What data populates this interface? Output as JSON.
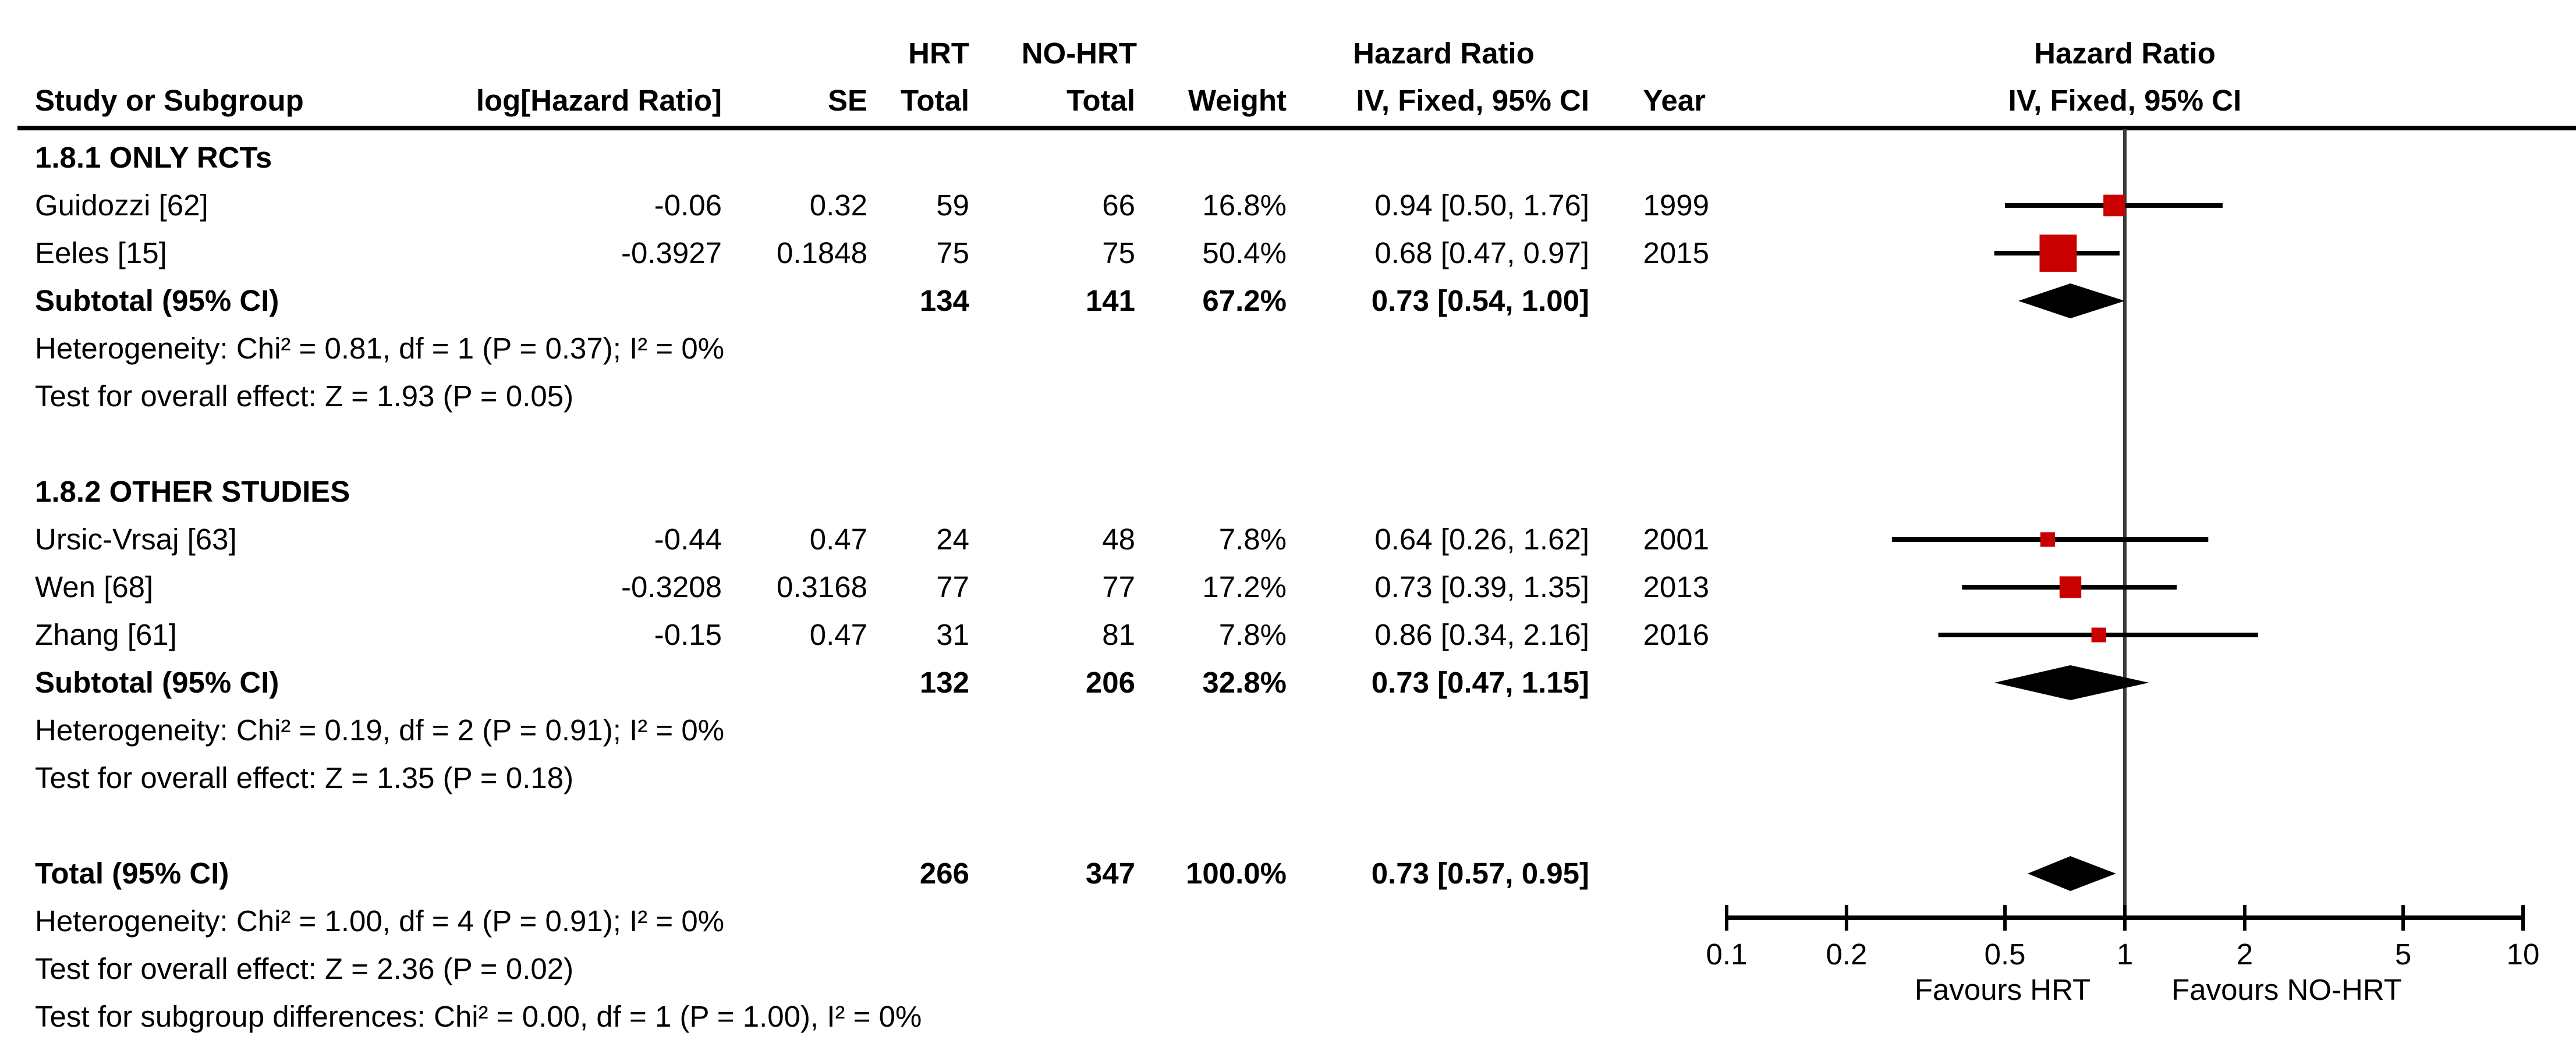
{
  "figure": {
    "col_headers": {
      "group_hrt": "HRT",
      "group_nohrt": "NO-HRT",
      "hazard_ratio": "Hazard Ratio",
      "study": "Study or Subgroup",
      "loghr": "log[Hazard Ratio]",
      "se": "SE",
      "total_hrt": "Total",
      "total_nohrt": "Total",
      "weight": "Weight",
      "iv_fixed": "IV, Fixed, 95% CI",
      "year": "Year",
      "plot_hazard_ratio": "Hazard Ratio",
      "plot_iv_fixed": "IV, Fixed, 95% CI"
    },
    "s1": {
      "title": "1.8.1 ONLY RCTs",
      "rows": [
        {
          "study": "Guidozzi [62]",
          "loghr": "-0.06",
          "se": "0.32",
          "t1": "59",
          "t2": "66",
          "weight": "16.8%",
          "ci": "0.94 [0.50, 1.76]",
          "year": "1999"
        },
        {
          "study": "Eeles [15]",
          "loghr": "-0.3927",
          "se": "0.1848",
          "t1": "75",
          "t2": "75",
          "weight": "50.4%",
          "ci": "0.68 [0.47, 0.97]",
          "year": "2015"
        }
      ],
      "subtotal": {
        "label": "Subtotal (95% CI)",
        "t1": "134",
        "t2": "141",
        "weight": "67.2%",
        "ci": "0.73 [0.54, 1.00]"
      },
      "heterogeneity": "Heterogeneity: Chi² = 0.81, df = 1 (P = 0.37); I² = 0%",
      "overall": "Test for overall effect: Z = 1.93 (P = 0.05)"
    },
    "s2": {
      "title": "1.8.2 OTHER STUDIES",
      "rows": [
        {
          "study": "Ursic-Vrsaj [63]",
          "loghr": "-0.44",
          "se": "0.47",
          "t1": "24",
          "t2": "48",
          "weight": "7.8%",
          "ci": "0.64 [0.26, 1.62]",
          "year": "2001"
        },
        {
          "study": "Wen [68]",
          "loghr": "-0.3208",
          "se": "0.3168",
          "t1": "77",
          "t2": "77",
          "weight": "17.2%",
          "ci": "0.73 [0.39, 1.35]",
          "year": "2013"
        },
        {
          "study": "Zhang [61]",
          "loghr": "-0.15",
          "se": "0.47",
          "t1": "31",
          "t2": "81",
          "weight": "7.8%",
          "ci": "0.86 [0.34, 2.16]",
          "year": "2016"
        }
      ],
      "subtotal": {
        "label": "Subtotal (95% CI)",
        "t1": "132",
        "t2": "206",
        "weight": "32.8%",
        "ci": "0.73 [0.47, 1.15]"
      },
      "heterogeneity": "Heterogeneity: Chi² = 0.19, df = 2 (P = 0.91); I² = 0%",
      "overall": "Test for overall effect: Z = 1.35 (P = 0.18)"
    },
    "total": {
      "label": "Total (95% CI)",
      "t1": "266",
      "t2": "347",
      "weight": "100.0%",
      "ci": "0.73 [0.57, 0.95]",
      "heterogeneity": "Heterogeneity: Chi² = 1.00, df = 4 (P = 0.91); I² = 0%",
      "overall": "Test for overall effect: Z = 2.36 (P = 0.02)",
      "subgroup_diff": "Test for subgroup differences: Chi² = 0.00, df = 1 (P = 1.00), I² = 0%"
    }
  },
  "chart_data": {
    "type": "forest",
    "effect_measure": "Hazard Ratio",
    "model": "IV, Fixed, 95% CI",
    "x_scale": "log",
    "x_ticks": [
      0.1,
      0.2,
      0.5,
      1,
      2,
      5,
      10
    ],
    "x_range": [
      0.1,
      10
    ],
    "null_line": 1,
    "favours_left": "Favours HRT",
    "favours_right": "Favours NO-HRT",
    "studies": [
      {
        "key": "guidozzi",
        "label": "Guidozzi [62]",
        "hr": 0.94,
        "lo": 0.5,
        "hi": 1.76,
        "weight_pct": 16.8,
        "year": 1999
      },
      {
        "key": "eeles",
        "label": "Eeles [15]",
        "hr": 0.68,
        "lo": 0.47,
        "hi": 0.97,
        "weight_pct": 50.4,
        "year": 2015
      },
      {
        "key": "ursic",
        "label": "Ursic-Vrsaj [63]",
        "hr": 0.64,
        "lo": 0.26,
        "hi": 1.62,
        "weight_pct": 7.8,
        "year": 2001
      },
      {
        "key": "wen",
        "label": "Wen [68]",
        "hr": 0.73,
        "lo": 0.39,
        "hi": 1.35,
        "weight_pct": 17.2,
        "year": 2013
      },
      {
        "key": "zhang",
        "label": "Zhang [61]",
        "hr": 0.86,
        "lo": 0.34,
        "hi": 2.16,
        "weight_pct": 7.8,
        "year": 2016
      }
    ],
    "diamonds": [
      {
        "key": "sub1",
        "label": "Subtotal 1.8.1 (95% CI)",
        "hr": 0.73,
        "lo": 0.54,
        "hi": 1.0
      },
      {
        "key": "sub2",
        "label": "Subtotal 1.8.2 (95% CI)",
        "hr": 0.73,
        "lo": 0.47,
        "hi": 1.15
      },
      {
        "key": "total",
        "label": "Total (95% CI)",
        "hr": 0.73,
        "lo": 0.57,
        "hi": 0.95
      }
    ],
    "colors": {
      "square": "#c80000",
      "diamond": "#000000",
      "ci_line": "#000000",
      "null_line": "#3a3a3a"
    }
  }
}
